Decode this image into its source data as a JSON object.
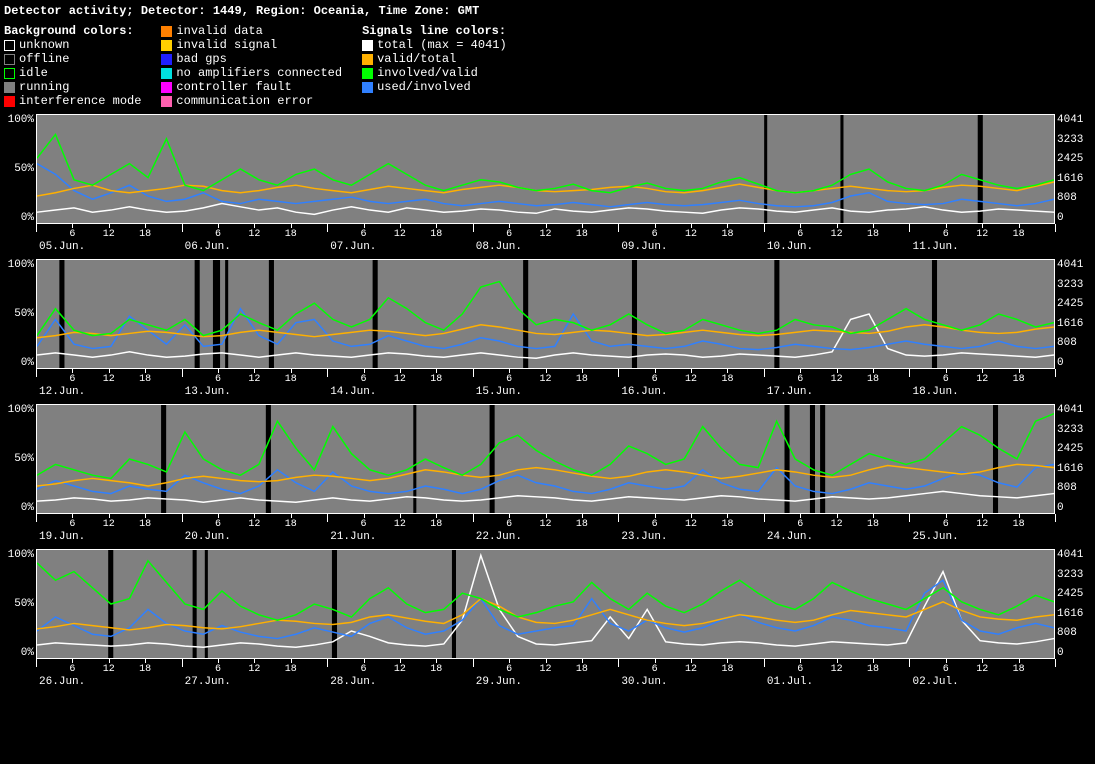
{
  "title": "Detector activity; Detector: 1449, Region: Oceania, Time Zone: GMT",
  "legend": {
    "bg_heading": "Background colors:",
    "sig_heading": "Signals line colors:",
    "bg_items": [
      {
        "label": "unknown",
        "color": "#ffffff",
        "outline": true
      },
      {
        "label": "offline",
        "color": "#808080",
        "outline": true
      },
      {
        "label": "idle",
        "color": "#00ff00",
        "outline": true
      },
      {
        "label": "running",
        "color": "#808080",
        "outline": false
      },
      {
        "label": "interference mode",
        "color": "#ff0000",
        "outline": false
      },
      {
        "label": "invalid data",
        "color": "#ff8000",
        "outline": false
      },
      {
        "label": "invalid signal",
        "color": "#ffd000",
        "outline": false
      },
      {
        "label": "bad gps",
        "color": "#2020ff",
        "outline": false
      },
      {
        "label": "no amplifiers connected",
        "color": "#00e0e0",
        "outline": false
      },
      {
        "label": "controller fault",
        "color": "#ff00ff",
        "outline": false
      },
      {
        "label": "communication error",
        "color": "#ff60b0",
        "outline": false
      }
    ],
    "sig_items": [
      {
        "label": "total (max = 4041)",
        "color": "#ffffff"
      },
      {
        "label": "valid/total",
        "color": "#ffb000"
      },
      {
        "label": "involved/valid",
        "color": "#00ff00"
      },
      {
        "label": "used/involved",
        "color": "#3080ff"
      }
    ]
  },
  "chart": {
    "plot_bg": "#808080",
    "gap_color": "#000000",
    "y_left_ticks": [
      "100%",
      "50%",
      "0%"
    ],
    "y_right_ticks": [
      "4041",
      "3233",
      "2425",
      "1616",
      "808",
      "0"
    ],
    "minor_hours": [
      6,
      12,
      18
    ],
    "series_colors": {
      "total": "#ffffff",
      "valid": "#ffb000",
      "involved": "#00ff00",
      "used": "#3080ff"
    },
    "line_width": 1.5
  },
  "rows": [
    {
      "days": [
        "05.Jun.",
        "06.Jun.",
        "07.Jun.",
        "08.Jun.",
        "09.Jun.",
        "10.Jun.",
        "11.Jun."
      ],
      "gaps": [
        [
          0.715,
          0.718
        ],
        [
          0.79,
          0.793
        ],
        [
          0.925,
          0.93
        ]
      ],
      "series": {
        "total": [
          10,
          12,
          14,
          10,
          12,
          15,
          12,
          10,
          11,
          14,
          18,
          15,
          12,
          14,
          10,
          8,
          12,
          15,
          12,
          10,
          14,
          12,
          10,
          11,
          13,
          12,
          10,
          9,
          13,
          11,
          10,
          12,
          14,
          13,
          11,
          10,
          9,
          12,
          14,
          13,
          11,
          10,
          12,
          14,
          11,
          10,
          12,
          13,
          15,
          12,
          10,
          11,
          13,
          12,
          11,
          10
        ],
        "valid": [
          25,
          28,
          32,
          35,
          30,
          28,
          30,
          32,
          35,
          34,
          30,
          28,
          30,
          33,
          35,
          32,
          30,
          28,
          31,
          34,
          32,
          30,
          28,
          31,
          33,
          35,
          33,
          30,
          29,
          30,
          31,
          33,
          34,
          32,
          29,
          28,
          30,
          33,
          36,
          33,
          30,
          28,
          30,
          32,
          34,
          32,
          30,
          29,
          30,
          33,
          35,
          34,
          32,
          30,
          34,
          38
        ],
        "involved": [
          60,
          82,
          40,
          35,
          45,
          55,
          42,
          78,
          35,
          30,
          40,
          50,
          40,
          35,
          45,
          50,
          40,
          35,
          45,
          55,
          45,
          35,
          30,
          35,
          40,
          38,
          33,
          30,
          32,
          36,
          30,
          28,
          33,
          37,
          32,
          30,
          32,
          38,
          42,
          36,
          30,
          28,
          30,
          35,
          45,
          50,
          38,
          32,
          30,
          35,
          45,
          40,
          35,
          32,
          35,
          40
        ],
        "used": [
          55,
          45,
          30,
          22,
          28,
          35,
          25,
          20,
          22,
          28,
          20,
          18,
          22,
          20,
          18,
          20,
          22,
          24,
          20,
          18,
          20,
          22,
          18,
          16,
          18,
          20,
          18,
          16,
          17,
          19,
          17,
          15,
          17,
          19,
          17,
          16,
          17,
          19,
          21,
          18,
          16,
          15,
          16,
          19,
          25,
          28,
          20,
          18,
          17,
          18,
          22,
          20,
          18,
          16,
          18,
          22
        ]
      }
    },
    {
      "days": [
        "12.Jun.",
        "13.Jun.",
        "14.Jun.",
        "15.Jun.",
        "16.Jun.",
        "17.Jun.",
        "18.Jun."
      ],
      "gaps": [
        [
          0.022,
          0.027
        ],
        [
          0.155,
          0.16
        ],
        [
          0.173,
          0.18
        ],
        [
          0.185,
          0.188
        ],
        [
          0.228,
          0.233
        ],
        [
          0.33,
          0.335
        ],
        [
          0.478,
          0.483
        ],
        [
          0.585,
          0.59
        ],
        [
          0.725,
          0.73
        ],
        [
          0.88,
          0.885
        ]
      ],
      "series": {
        "total": [
          12,
          14,
          12,
          10,
          12,
          15,
          12,
          10,
          11,
          13,
          14,
          12,
          10,
          12,
          14,
          12,
          11,
          10,
          12,
          14,
          13,
          11,
          10,
          12,
          14,
          12,
          10,
          9,
          12,
          14,
          12,
          11,
          10,
          12,
          13,
          12,
          10,
          11,
          13,
          12,
          11,
          10,
          12,
          15,
          45,
          50,
          18,
          12,
          11,
          12,
          14,
          13,
          12,
          11,
          10,
          12
        ],
        "valid": [
          28,
          30,
          33,
          32,
          30,
          32,
          34,
          33,
          31,
          29,
          30,
          33,
          35,
          33,
          31,
          29,
          31,
          33,
          35,
          34,
          32,
          30,
          32,
          36,
          40,
          38,
          35,
          32,
          31,
          33,
          35,
          34,
          32,
          30,
          31,
          33,
          35,
          33,
          31,
          30,
          31,
          33,
          35,
          34,
          33,
          32,
          34,
          38,
          40,
          38,
          35,
          33,
          32,
          33,
          36,
          38
        ],
        "involved": [
          30,
          55,
          35,
          30,
          32,
          45,
          40,
          35,
          45,
          30,
          35,
          50,
          42,
          35,
          50,
          60,
          45,
          38,
          45,
          65,
          55,
          42,
          35,
          50,
          75,
          80,
          55,
          40,
          45,
          42,
          35,
          40,
          50,
          40,
          32,
          35,
          45,
          40,
          35,
          32,
          35,
          45,
          40,
          38,
          32,
          35,
          45,
          55,
          45,
          40,
          35,
          40,
          50,
          45,
          38,
          42
        ],
        "used": [
          20,
          45,
          22,
          18,
          20,
          48,
          35,
          22,
          40,
          20,
          22,
          55,
          30,
          22,
          42,
          45,
          25,
          20,
          22,
          30,
          25,
          20,
          18,
          22,
          28,
          25,
          20,
          18,
          20,
          50,
          25,
          20,
          22,
          20,
          18,
          20,
          25,
          22,
          18,
          17,
          19,
          22,
          20,
          18,
          17,
          19,
          22,
          25,
          22,
          20,
          18,
          20,
          25,
          20,
          18,
          20
        ]
      }
    },
    {
      "days": [
        "19.Jun.",
        "20.Jun.",
        "21.Jun.",
        "22.Jun.",
        "23.Jun.",
        "24.Jun.",
        "25.Jun."
      ],
      "gaps": [
        [
          0.122,
          0.127
        ],
        [
          0.225,
          0.23
        ],
        [
          0.37,
          0.373
        ],
        [
          0.445,
          0.45
        ],
        [
          0.735,
          0.74
        ],
        [
          0.76,
          0.765
        ],
        [
          0.77,
          0.775
        ],
        [
          0.94,
          0.945
        ]
      ],
      "series": {
        "total": [
          11,
          12,
          14,
          13,
          11,
          12,
          14,
          13,
          12,
          10,
          12,
          14,
          12,
          11,
          10,
          12,
          14,
          12,
          11,
          13,
          15,
          14,
          12,
          11,
          12,
          14,
          16,
          15,
          14,
          12,
          11,
          13,
          15,
          14,
          13,
          12,
          14,
          16,
          15,
          13,
          12,
          11,
          13,
          15,
          14,
          13,
          14,
          16,
          18,
          20,
          18,
          16,
          15,
          14,
          16,
          18
        ],
        "valid": [
          25,
          27,
          30,
          32,
          30,
          28,
          25,
          28,
          32,
          34,
          32,
          30,
          29,
          30,
          33,
          35,
          34,
          32,
          30,
          32,
          36,
          40,
          38,
          35,
          33,
          35,
          40,
          42,
          40,
          37,
          34,
          32,
          34,
          38,
          40,
          38,
          35,
          32,
          34,
          37,
          40,
          38,
          35,
          33,
          35,
          40,
          44,
          42,
          40,
          38,
          36,
          38,
          42,
          45,
          44,
          42
        ],
        "involved": [
          35,
          45,
          40,
          35,
          32,
          50,
          45,
          38,
          75,
          50,
          40,
          35,
          45,
          85,
          60,
          40,
          80,
          55,
          40,
          35,
          40,
          50,
          42,
          35,
          45,
          65,
          72,
          58,
          48,
          40,
          35,
          45,
          62,
          55,
          45,
          50,
          80,
          60,
          45,
          42,
          85,
          50,
          40,
          35,
          45,
          55,
          50,
          45,
          50,
          65,
          80,
          72,
          60,
          50,
          85,
          92
        ],
        "used": [
          22,
          30,
          25,
          20,
          18,
          25,
          22,
          20,
          35,
          28,
          22,
          18,
          25,
          40,
          28,
          20,
          38,
          25,
          20,
          18,
          20,
          25,
          22,
          18,
          22,
          30,
          35,
          28,
          25,
          20,
          18,
          22,
          28,
          25,
          22,
          25,
          40,
          28,
          22,
          20,
          42,
          25,
          20,
          18,
          22,
          28,
          25,
          22,
          25,
          32,
          38,
          35,
          28,
          24,
          42,
          45
        ]
      }
    },
    {
      "days": [
        "26.Jun.",
        "27.Jun.",
        "28.Jun.",
        "29.Jun.",
        "30.Jun.",
        "01.Jul.",
        "02.Jul."
      ],
      "gaps": [
        [
          0.07,
          0.075
        ],
        [
          0.153,
          0.157
        ],
        [
          0.165,
          0.168
        ],
        [
          0.29,
          0.295
        ],
        [
          0.408,
          0.412
        ]
      ],
      "series": {
        "total": [
          12,
          14,
          13,
          12,
          11,
          12,
          14,
          13,
          11,
          10,
          12,
          14,
          13,
          11,
          10,
          12,
          15,
          25,
          20,
          14,
          12,
          11,
          13,
          35,
          95,
          45,
          20,
          13,
          12,
          14,
          16,
          38,
          18,
          45,
          15,
          13,
          12,
          14,
          15,
          14,
          12,
          11,
          13,
          15,
          14,
          13,
          12,
          14,
          48,
          80,
          35,
          16,
          14,
          13,
          15,
          18
        ],
        "valid": [
          27,
          29,
          32,
          30,
          28,
          26,
          28,
          31,
          30,
          28,
          27,
          29,
          32,
          35,
          34,
          32,
          31,
          33,
          38,
          40,
          37,
          34,
          32,
          40,
          55,
          48,
          38,
          33,
          32,
          35,
          40,
          45,
          40,
          35,
          32,
          30,
          32,
          36,
          40,
          38,
          35,
          33,
          35,
          40,
          44,
          42,
          40,
          38,
          45,
          52,
          44,
          38,
          36,
          35,
          38,
          40
        ],
        "involved": [
          88,
          72,
          80,
          65,
          50,
          55,
          90,
          70,
          50,
          45,
          62,
          48,
          40,
          35,
          40,
          50,
          45,
          38,
          55,
          65,
          50,
          42,
          45,
          60,
          55,
          45,
          38,
          42,
          48,
          52,
          70,
          55,
          45,
          60,
          48,
          42,
          50,
          62,
          72,
          60,
          50,
          45,
          55,
          70,
          62,
          55,
          50,
          45,
          55,
          65,
          52,
          45,
          40,
          48,
          58,
          52
        ],
        "used": [
          25,
          38,
          30,
          22,
          20,
          28,
          45,
          32,
          25,
          22,
          30,
          24,
          20,
          18,
          22,
          28,
          24,
          20,
          32,
          38,
          28,
          22,
          25,
          35,
          55,
          30,
          22,
          25,
          28,
          30,
          55,
          32,
          25,
          35,
          28,
          24,
          28,
          35,
          40,
          33,
          28,
          25,
          30,
          38,
          35,
          30,
          28,
          25,
          60,
          72,
          35,
          25,
          22,
          28,
          32,
          28
        ]
      }
    }
  ]
}
